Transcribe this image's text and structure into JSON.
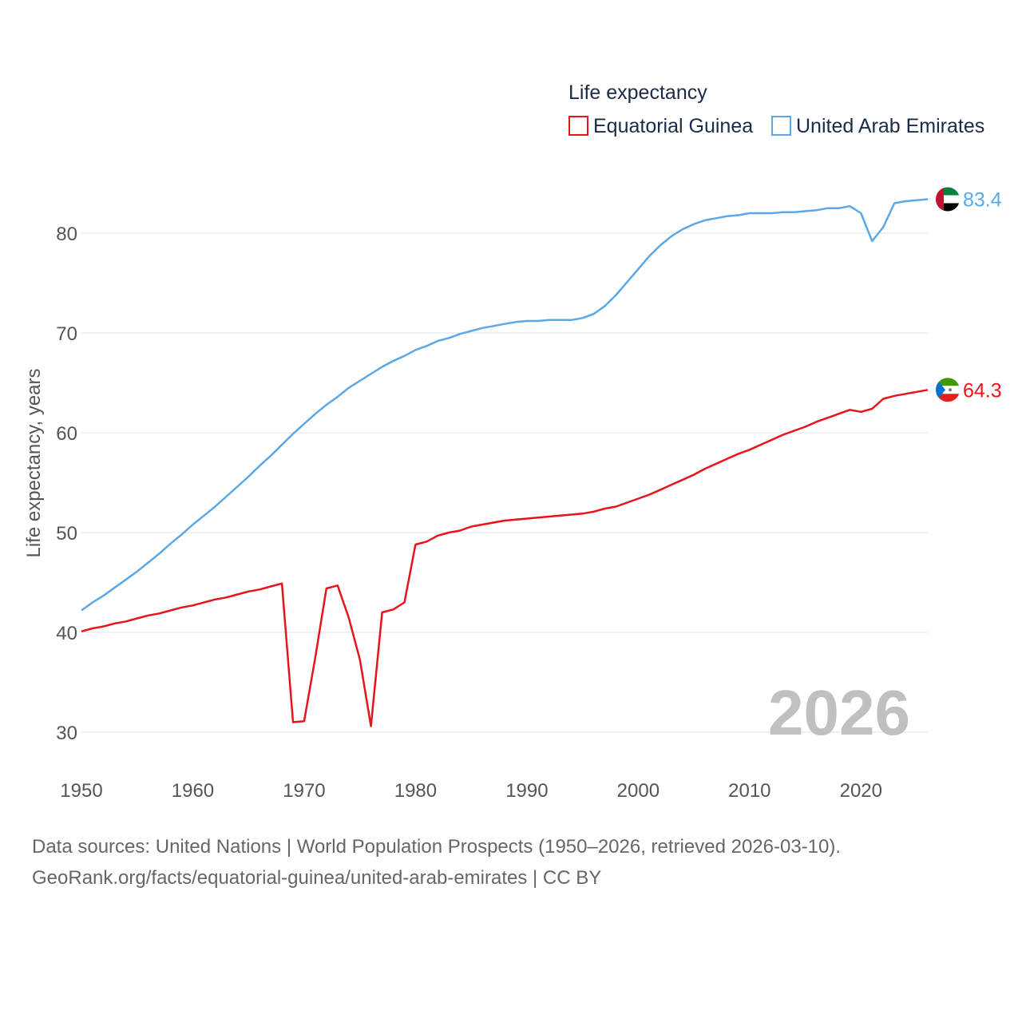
{
  "chart_data": {
    "type": "line",
    "legend_title": "Life expectancy",
    "ylabel": "Life expectancy, years",
    "xlim": [
      1950,
      2026
    ],
    "ylim": [
      30,
      85
    ],
    "yticks": [
      30,
      40,
      50,
      60,
      70,
      80
    ],
    "xticks": [
      1950,
      1960,
      1970,
      1980,
      1990,
      2000,
      2010,
      2020
    ],
    "grid": true,
    "legend_position": "top-right",
    "year_label": "2026",
    "series": [
      {
        "name": "Equatorial Guinea",
        "color": "#e8141c",
        "end_label": "64.3",
        "flag": "equatorial-guinea-flag-icon",
        "x": [
          1950,
          1951,
          1952,
          1953,
          1954,
          1955,
          1956,
          1957,
          1958,
          1959,
          1960,
          1961,
          1962,
          1963,
          1964,
          1965,
          1966,
          1967,
          1968,
          1969,
          1970,
          1971,
          1972,
          1973,
          1974,
          1975,
          1976,
          1977,
          1978,
          1979,
          1980,
          1981,
          1982,
          1983,
          1984,
          1985,
          1986,
          1987,
          1988,
          1989,
          1990,
          1991,
          1992,
          1993,
          1994,
          1995,
          1996,
          1997,
          1998,
          1999,
          2000,
          2001,
          2002,
          2003,
          2004,
          2005,
          2006,
          2007,
          2008,
          2009,
          2010,
          2011,
          2012,
          2013,
          2014,
          2015,
          2016,
          2017,
          2018,
          2019,
          2020,
          2021,
          2022,
          2023,
          2024,
          2025,
          2026
        ],
        "values": [
          40.1,
          40.4,
          40.6,
          40.9,
          41.1,
          41.4,
          41.7,
          41.9,
          42.2,
          42.5,
          42.7,
          43.0,
          43.3,
          43.5,
          43.8,
          44.1,
          44.3,
          44.6,
          44.9,
          31.0,
          31.1,
          37.5,
          44.4,
          44.7,
          41.5,
          37.3,
          30.6,
          42.0,
          42.3,
          43.0,
          48.8,
          49.1,
          49.7,
          50.0,
          50.2,
          50.6,
          50.8,
          51.0,
          51.2,
          51.3,
          51.4,
          51.5,
          51.6,
          51.7,
          51.8,
          51.9,
          52.1,
          52.4,
          52.6,
          53.0,
          53.4,
          53.8,
          54.3,
          54.8,
          55.3,
          55.8,
          56.4,
          56.9,
          57.4,
          57.9,
          58.3,
          58.8,
          59.3,
          59.8,
          60.2,
          60.6,
          61.1,
          61.5,
          61.9,
          62.3,
          62.1,
          62.4,
          63.4,
          63.7,
          63.9,
          64.1,
          64.3
        ]
      },
      {
        "name": "United Arab Emirates",
        "color": "#5ba8e6",
        "end_label": "83.4",
        "flag": "uae-flag-icon",
        "x": [
          1950,
          1951,
          1952,
          1953,
          1954,
          1955,
          1956,
          1957,
          1958,
          1959,
          1960,
          1961,
          1962,
          1963,
          1964,
          1965,
          1966,
          1967,
          1968,
          1969,
          1970,
          1971,
          1972,
          1973,
          1974,
          1975,
          1976,
          1977,
          1978,
          1979,
          1980,
          1981,
          1982,
          1983,
          1984,
          1985,
          1986,
          1987,
          1988,
          1989,
          1990,
          1991,
          1992,
          1993,
          1994,
          1995,
          1996,
          1997,
          1998,
          1999,
          2000,
          2001,
          2002,
          2003,
          2004,
          2005,
          2006,
          2007,
          2008,
          2009,
          2010,
          2011,
          2012,
          2013,
          2014,
          2015,
          2016,
          2017,
          2018,
          2019,
          2020,
          2021,
          2022,
          2023,
          2024,
          2025,
          2026
        ],
        "values": [
          42.2,
          43.0,
          43.7,
          44.5,
          45.3,
          46.1,
          47.0,
          47.9,
          48.9,
          49.8,
          50.8,
          51.7,
          52.6,
          53.6,
          54.6,
          55.6,
          56.7,
          57.7,
          58.8,
          59.9,
          60.9,
          61.9,
          62.8,
          63.6,
          64.5,
          65.2,
          65.9,
          66.6,
          67.2,
          67.7,
          68.3,
          68.7,
          69.2,
          69.5,
          69.9,
          70.2,
          70.5,
          70.7,
          70.9,
          71.1,
          71.2,
          71.2,
          71.3,
          71.3,
          71.3,
          71.5,
          71.9,
          72.7,
          73.8,
          75.1,
          76.4,
          77.7,
          78.8,
          79.7,
          80.4,
          80.9,
          81.3,
          81.5,
          81.7,
          81.8,
          82.0,
          82.0,
          82.0,
          82.1,
          82.1,
          82.2,
          82.3,
          82.5,
          82.5,
          82.7,
          82.0,
          79.2,
          80.6,
          83.0,
          83.2,
          83.3,
          83.4
        ]
      }
    ]
  },
  "footer": {
    "line1": "Data sources: United Nations | World Population Prospects (1950–2026, retrieved 2026-03-10).",
    "line2": "GeoRank.org/facts/equatorial-guinea/united-arab-emirates | CC BY"
  }
}
